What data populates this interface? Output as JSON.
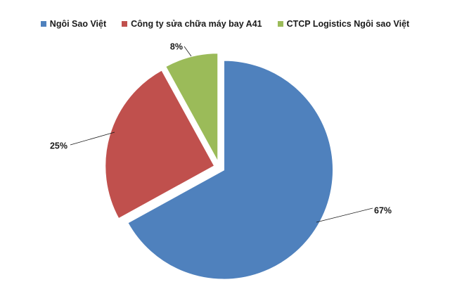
{
  "chart_data": {
    "type": "pie",
    "categories": [
      "Ngôi Sao Việt",
      "Công ty sửa chữa máy bay A41",
      "CTCP Logistics Ngôi sao Việt"
    ],
    "values": [
      67,
      25,
      8
    ],
    "labels": [
      "67%",
      "25%",
      "8%"
    ],
    "colors": [
      "#4f81bd",
      "#c0504d",
      "#9bbb59"
    ],
    "legend_position": "top",
    "exploded": true
  }
}
